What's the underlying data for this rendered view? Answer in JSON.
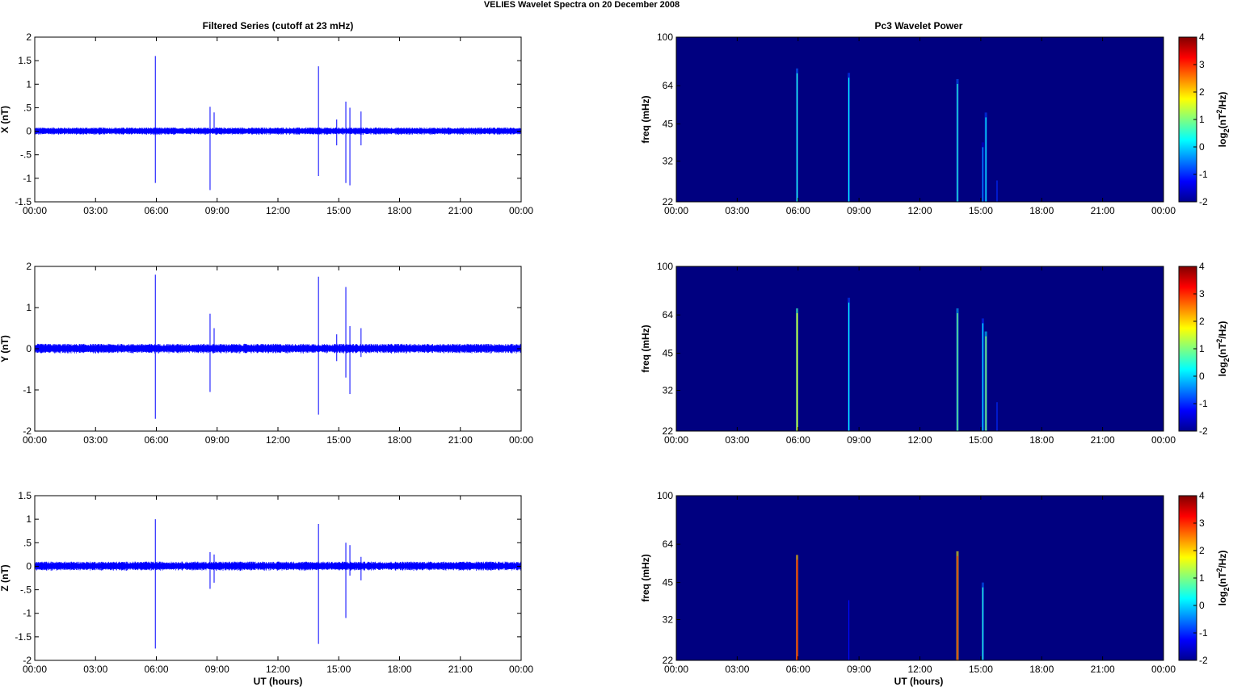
{
  "figure_title": "VELIES Wavelet Spectra on 20 December  2008",
  "left_title": "Filtered Series (cutoff at 23 mHz)",
  "right_title": "Pc3 Wavelet Power",
  "x_label": "UT (hours)",
  "x_ticks": [
    "00:00",
    "03:00",
    "06:00",
    "09:00",
    "12:00",
    "15:00",
    "18:00",
    "21:00",
    "00:00"
  ],
  "freq_label": "freq (mHz)",
  "colorbar_label": "log2(nT2/Hz)",
  "colors": {
    "trace": "#0000ff",
    "background": "#00008f"
  },
  "chart_data": [
    {
      "type": "line",
      "panel": "X",
      "ylabel": "X (nT)",
      "xlim": [
        0,
        24
      ],
      "ylim": [
        -1.5,
        2
      ],
      "yticks": [
        2,
        1.5,
        1,
        0.5,
        0,
        -0.5,
        -1,
        -1.5
      ],
      "noise_amplitude": 0.08,
      "spikes": [
        {
          "x": 5.95,
          "max": 1.6,
          "min": -1.1
        },
        {
          "x": 8.65,
          "max": 0.52,
          "min": -1.25
        },
        {
          "x": 8.85,
          "max": 0.4,
          "min": -0.05
        },
        {
          "x": 14.0,
          "max": 1.38,
          "min": -0.95
        },
        {
          "x": 14.9,
          "max": 0.25,
          "min": -0.3
        },
        {
          "x": 15.35,
          "max": 0.63,
          "min": -1.1
        },
        {
          "x": 15.55,
          "max": 0.5,
          "min": -1.15
        },
        {
          "x": 16.1,
          "max": 0.42,
          "min": -0.3
        }
      ]
    },
    {
      "type": "line",
      "panel": "Y",
      "ylabel": "Y (nT)",
      "xlim": [
        0,
        24
      ],
      "ylim": [
        -2,
        2
      ],
      "yticks": [
        2,
        1,
        0,
        -1,
        -2
      ],
      "noise_amplitude": 0.12,
      "spikes": [
        {
          "x": 5.95,
          "max": 1.8,
          "min": -1.7
        },
        {
          "x": 8.65,
          "max": 0.85,
          "min": -1.05
        },
        {
          "x": 8.85,
          "max": 0.5,
          "min": -0.1
        },
        {
          "x": 14.0,
          "max": 1.75,
          "min": -1.6
        },
        {
          "x": 14.9,
          "max": 0.35,
          "min": -0.3
        },
        {
          "x": 15.35,
          "max": 1.5,
          "min": -0.7
        },
        {
          "x": 15.55,
          "max": 0.55,
          "min": -1.1
        },
        {
          "x": 16.1,
          "max": 0.5,
          "min": -0.2
        }
      ]
    },
    {
      "type": "line",
      "panel": "Z",
      "ylabel": "Z (nT)",
      "xlim": [
        0,
        24
      ],
      "ylim": [
        -2,
        1.5
      ],
      "yticks": [
        1.5,
        1,
        0.5,
        0,
        -0.5,
        -1,
        -1.5,
        -2
      ],
      "noise_amplitude": 0.1,
      "spikes": [
        {
          "x": 5.95,
          "max": 1.0,
          "min": -1.75
        },
        {
          "x": 8.65,
          "max": 0.3,
          "min": -0.48
        },
        {
          "x": 8.85,
          "max": 0.25,
          "min": -0.35
        },
        {
          "x": 14.0,
          "max": 0.9,
          "min": -1.65
        },
        {
          "x": 15.35,
          "max": 0.5,
          "min": -1.1
        },
        {
          "x": 15.55,
          "max": 0.45,
          "min": -0.2
        },
        {
          "x": 16.1,
          "max": 0.2,
          "min": -0.3
        }
      ]
    },
    {
      "type": "heatmap",
      "panel": "X",
      "ylabel": "freq (mHz)",
      "yticks": [
        100,
        64,
        45,
        32,
        22
      ],
      "ylim": [
        22,
        100
      ],
      "xlim": [
        0,
        24
      ],
      "clim": [
        -2,
        4
      ],
      "cbar_ticks": [
        4,
        3,
        2,
        1,
        0,
        -1,
        -2
      ],
      "background_value": -2,
      "bursts": [
        {
          "t": 5.95,
          "f_top": 75,
          "value": 0.5
        },
        {
          "t": 8.5,
          "f_top": 72,
          "value": 0.3
        },
        {
          "t": 13.85,
          "f_top": 68,
          "value": 0.5
        },
        {
          "t": 15.1,
          "f_top": 38,
          "value": -0.3
        },
        {
          "t": 15.25,
          "f_top": 50,
          "value": 0.3
        },
        {
          "t": 15.8,
          "f_top": 28,
          "value": -1.0
        }
      ]
    },
    {
      "type": "heatmap",
      "panel": "Y",
      "ylabel": "freq (mHz)",
      "yticks": [
        100,
        64,
        45,
        32,
        22
      ],
      "ylim": [
        22,
        100
      ],
      "xlim": [
        0,
        24
      ],
      "clim": [
        -2,
        4
      ],
      "cbar_ticks": [
        4,
        3,
        2,
        1,
        0,
        -1,
        -2
      ],
      "background_value": -2,
      "bursts": [
        {
          "t": 5.95,
          "f_top": 68,
          "value": 1.8
        },
        {
          "t": 8.5,
          "f_top": 75,
          "value": 0.3
        },
        {
          "t": 13.85,
          "f_top": 68,
          "value": 1.0
        },
        {
          "t": 15.1,
          "f_top": 62,
          "value": 0.2
        },
        {
          "t": 15.25,
          "f_top": 55,
          "value": 1.2
        },
        {
          "t": 15.8,
          "f_top": 30,
          "value": -1.0
        }
      ]
    },
    {
      "type": "heatmap",
      "panel": "Z",
      "ylabel": "freq (mHz)",
      "yticks": [
        100,
        64,
        45,
        32,
        22
      ],
      "ylim": [
        22,
        100
      ],
      "xlim": [
        0,
        24
      ],
      "clim": [
        -2,
        4
      ],
      "cbar_ticks": [
        4,
        3,
        2,
        1,
        0,
        -1,
        -2
      ],
      "background_value": -2,
      "bursts": [
        {
          "t": 5.95,
          "f_top": 58,
          "value": 3.3
        },
        {
          "t": 8.5,
          "f_top": 40,
          "value": -1.2
        },
        {
          "t": 13.85,
          "f_top": 60,
          "value": 3.0
        },
        {
          "t": 15.1,
          "f_top": 45,
          "value": 0.5
        }
      ]
    }
  ]
}
